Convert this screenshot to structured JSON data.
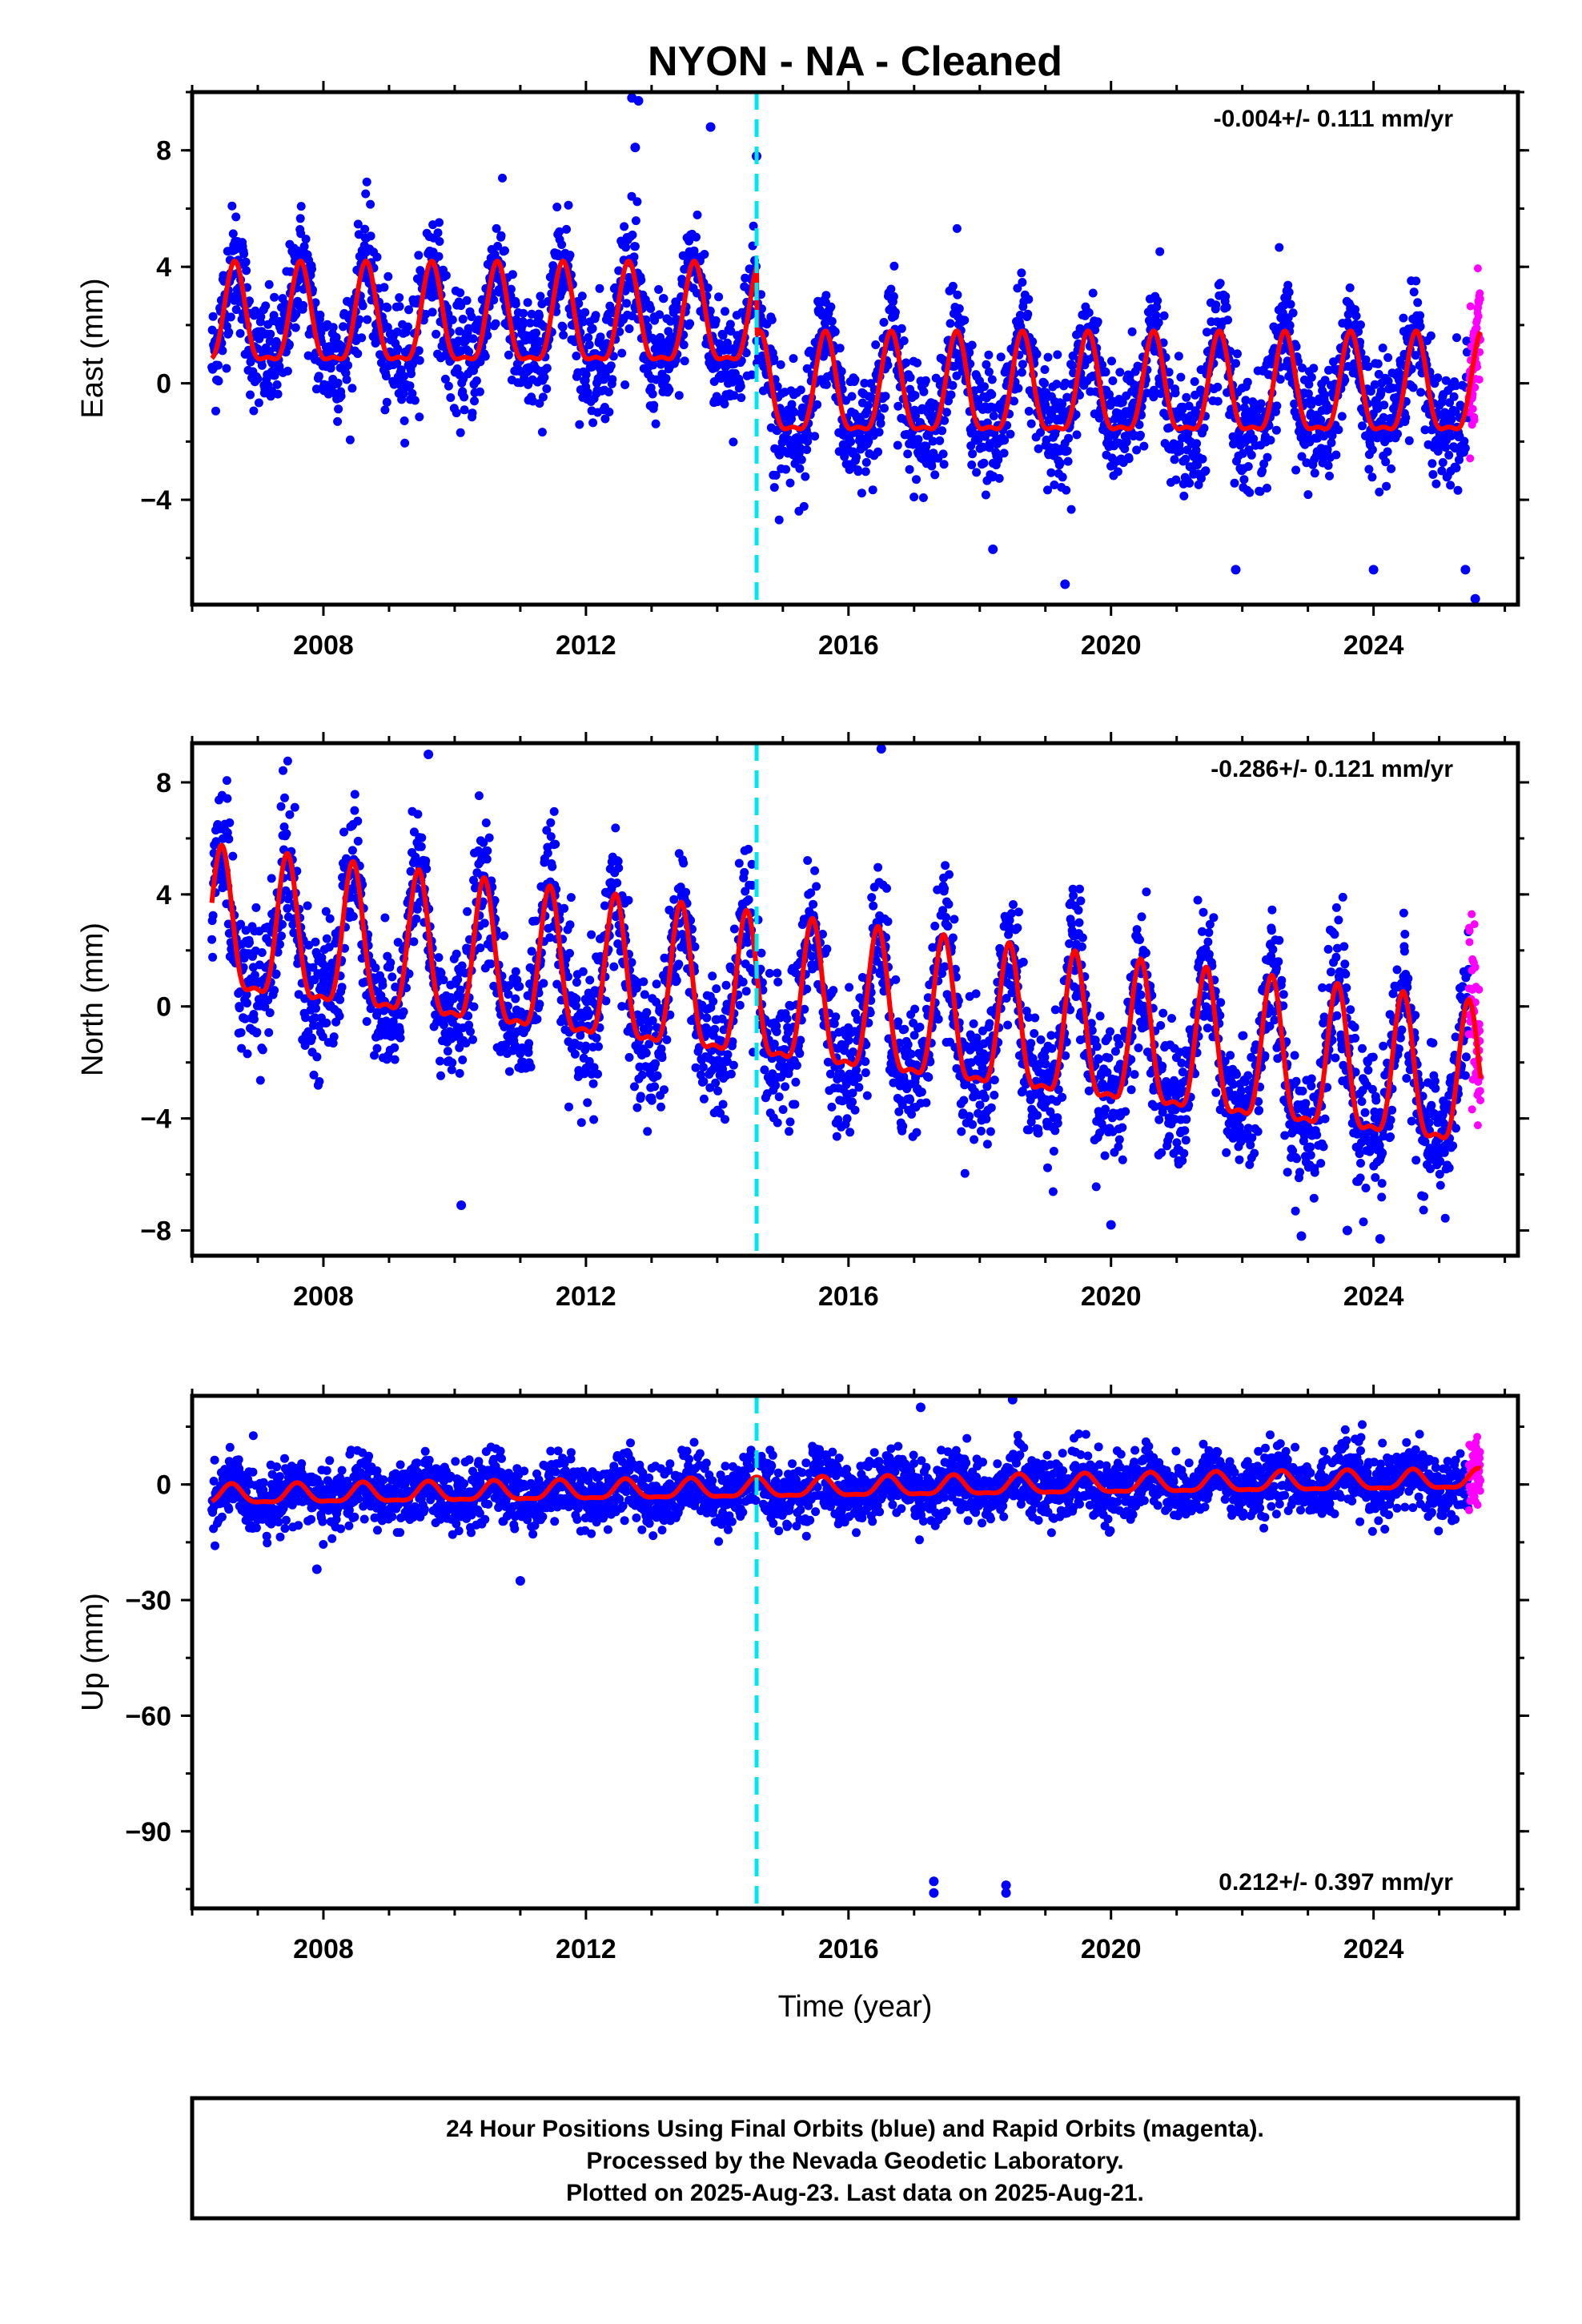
{
  "chart_data": {
    "title": "NYON  - NA - Cleaned",
    "xlabel": "Time (year)",
    "xlim": [
      2006.0,
      2026.2
    ],
    "x_ticks": [
      2008,
      2012,
      2016,
      2020,
      2024
    ],
    "colors": {
      "final_orbits": "#0000ff",
      "rapid_orbits": "#ff00ff",
      "model": "#ff0000",
      "offset": "#00e5ee"
    },
    "offset_epoch": 2014.6,
    "first_epoch": 2006.3,
    "last_epoch": 2025.63,
    "rapid_start": 2025.45,
    "panels": [
      {
        "name": "East",
        "ylabel": "East (mm)",
        "type": "scatter",
        "ylim": [
          -7.6,
          10.0
        ],
        "y_ticks": [
          -4,
          0,
          4,
          8
        ],
        "rate": "-0.004+/- 0.111 mm/yr",
        "model": {
          "pre_offset_level": 2.0,
          "post_offset_level": -0.4,
          "annual_amplitude": 2.2,
          "phase_peak": 0.65,
          "noise": 1.0
        },
        "outliers": [
          [
            2012.7,
            9.8
          ],
          [
            2012.8,
            9.7
          ],
          [
            2013.9,
            8.8
          ],
          [
            2012.75,
            8.1
          ],
          [
            2014.6,
            7.8
          ],
          [
            2018.2,
            -5.7
          ],
          [
            2019.3,
            -6.9
          ],
          [
            2021.9,
            -6.4
          ],
          [
            2024.0,
            -6.4
          ],
          [
            2025.55,
            -7.4
          ],
          [
            2025.4,
            -6.4
          ]
        ]
      },
      {
        "name": "North",
        "ylabel": "North (mm)",
        "type": "scatter",
        "ylim": [
          -8.9,
          9.4
        ],
        "y_ticks": [
          -8,
          -4,
          0,
          4,
          8
        ],
        "rate": "-0.286+/- 0.121 mm/yr",
        "model": {
          "start_level": 2.5,
          "trend": -0.29,
          "annual_amplitude": 3.3,
          "phase_peak": 0.45,
          "noise": 1.2
        },
        "outliers": [
          [
            2009.6,
            9.0
          ],
          [
            2016.5,
            9.2
          ],
          [
            2010.1,
            -7.1
          ],
          [
            2020.0,
            -7.8
          ],
          [
            2022.9,
            -8.2
          ],
          [
            2024.1,
            -8.3
          ],
          [
            2023.6,
            -8.0
          ]
        ]
      },
      {
        "name": "Up",
        "ylabel": "Up (mm)",
        "type": "scatter",
        "ylim": [
          -110,
          23
        ],
        "y_ticks": [
          -90,
          -60,
          -30,
          0
        ],
        "rate": "0.212+/- 0.397 mm/yr",
        "model": {
          "start_level": -3.0,
          "trend": 0.21,
          "annual_amplitude": 3.2,
          "phase_peak": 0.6,
          "noise": 4.0
        },
        "outliers": [
          [
            2017.3,
            -103
          ],
          [
            2017.3,
            -106
          ],
          [
            2018.4,
            -104
          ],
          [
            2018.4,
            -106
          ],
          [
            2011.0,
            -25
          ],
          [
            2007.9,
            -22
          ],
          [
            2018.5,
            22
          ],
          [
            2017.1,
            20
          ]
        ]
      }
    ]
  },
  "footer": {
    "line1": "24 Hour Positions Using Final Orbits (blue) and Rapid Orbits (magenta).",
    "line2": "Processed by the Nevada Geodetic Laboratory.",
    "line3": "Plotted on 2025-Aug-23. Last data on 2025-Aug-21."
  }
}
